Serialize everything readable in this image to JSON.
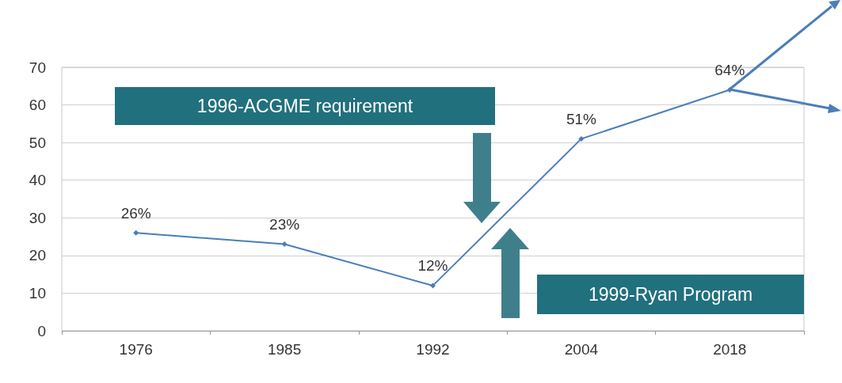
{
  "chart_data": {
    "type": "line",
    "categories": [
      "1976",
      "1985",
      "1992",
      "2004",
      "2018"
    ],
    "series": [
      {
        "color": "#4a7ebb",
        "values": [
          26,
          23,
          12,
          51,
          64
        ],
        "value_labels": [
          "26%",
          "23%",
          "12%",
          "51%",
          "64%"
        ]
      }
    ],
    "ylim": [
      0,
      70
    ],
    "yticks": [
      0,
      10,
      20,
      30,
      40,
      50,
      60,
      70
    ],
    "grid": "y",
    "marker": "diamond",
    "line_style": "solid",
    "annotations": [
      "1996-ACGME requirement",
      "1999-Ryan Program"
    ]
  }
}
